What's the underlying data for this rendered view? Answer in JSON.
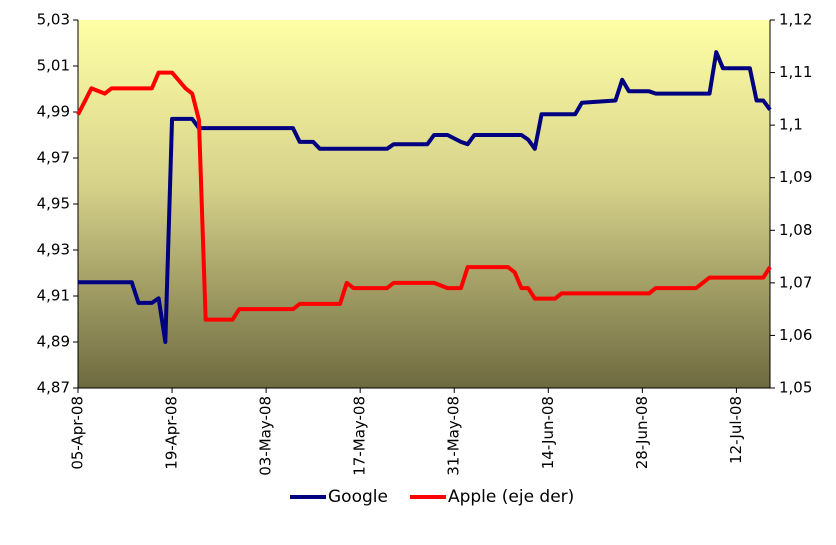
{
  "chart_data": {
    "type": "line",
    "x": [
      "2008-04-05",
      "2008-04-07",
      "2008-04-09",
      "2008-04-10",
      "2008-04-13",
      "2008-04-14",
      "2008-04-16",
      "2008-04-17",
      "2008-04-18",
      "2008-04-19",
      "2008-04-21",
      "2008-04-22",
      "2008-04-23",
      "2008-04-24",
      "2008-04-28",
      "2008-04-29",
      "2008-05-07",
      "2008-05-08",
      "2008-05-10",
      "2008-05-11",
      "2008-05-14",
      "2008-05-15",
      "2008-05-16",
      "2008-05-21",
      "2008-05-22",
      "2008-05-27",
      "2008-05-28",
      "2008-05-30",
      "2008-06-01",
      "2008-06-02",
      "2008-06-03",
      "2008-06-08",
      "2008-06-09",
      "2008-06-10",
      "2008-06-11",
      "2008-06-12",
      "2008-06-13",
      "2008-06-15",
      "2008-06-16",
      "2008-06-18",
      "2008-06-19",
      "2008-06-24",
      "2008-06-25",
      "2008-06-26",
      "2008-06-29",
      "2008-06-30",
      "2008-07-06",
      "2008-07-07",
      "2008-07-08",
      "2008-07-09",
      "2008-07-10",
      "2008-07-14",
      "2008-07-15",
      "2008-07-16",
      "2008-07-17"
    ],
    "series": [
      {
        "name": "Google",
        "color": "#000080",
        "axis": "y",
        "values": [
          4.916,
          4.916,
          4.916,
          4.916,
          4.916,
          4.907,
          4.907,
          4.909,
          4.89,
          4.987,
          4.987,
          4.987,
          4.983,
          4.983,
          4.983,
          4.983,
          4.983,
          4.977,
          4.977,
          4.974,
          4.974,
          4.974,
          4.974,
          4.974,
          4.976,
          4.976,
          4.98,
          4.98,
          4.977,
          4.976,
          4.98,
          4.98,
          4.98,
          4.98,
          4.978,
          4.974,
          4.989,
          4.989,
          4.989,
          4.989,
          4.994,
          4.995,
          5.004,
          4.999,
          4.999,
          4.998,
          4.998,
          4.998,
          4.998,
          5.016,
          5.009,
          5.009,
          4.995,
          4.995,
          4.991
        ]
      },
      {
        "name": "Apple (eje der)",
        "color": "#ff0000",
        "axis": "y2",
        "values": [
          1.102,
          1.107,
          1.106,
          1.107,
          1.107,
          1.107,
          1.107,
          1.11,
          1.11,
          1.11,
          1.107,
          1.106,
          1.101,
          1.063,
          1.063,
          1.065,
          1.065,
          1.066,
          1.066,
          1.066,
          1.066,
          1.07,
          1.069,
          1.069,
          1.07,
          1.07,
          1.07,
          1.069,
          1.069,
          1.073,
          1.073,
          1.073,
          1.072,
          1.069,
          1.069,
          1.067,
          1.067,
          1.067,
          1.068,
          1.068,
          1.068,
          1.068,
          1.068,
          1.068,
          1.068,
          1.069,
          1.069,
          1.07,
          1.071,
          1.071,
          1.071,
          1.071,
          1.071,
          1.071,
          1.073
        ]
      }
    ],
    "xlim": [
      "2008-04-05",
      "2008-07-17"
    ],
    "xticks": [
      {
        "value": "2008-04-05",
        "label": "05-Apr-08"
      },
      {
        "value": "2008-04-19",
        "label": "19-Apr-08"
      },
      {
        "value": "2008-05-03",
        "label": "03-May-08"
      },
      {
        "value": "2008-05-17",
        "label": "17-May-08"
      },
      {
        "value": "2008-05-31",
        "label": "31-May-08"
      },
      {
        "value": "2008-06-14",
        "label": "14-Jun-08"
      },
      {
        "value": "2008-06-28",
        "label": "28-Jun-08"
      },
      {
        "value": "2008-07-12",
        "label": "12-Jul-08"
      }
    ],
    "ylim": [
      4.87,
      5.03
    ],
    "yticks": [
      {
        "value": 4.87,
        "label": "4,87"
      },
      {
        "value": 4.89,
        "label": "4,89"
      },
      {
        "value": 4.91,
        "label": "4,91"
      },
      {
        "value": 4.93,
        "label": "4,93"
      },
      {
        "value": 4.95,
        "label": "4,95"
      },
      {
        "value": 4.97,
        "label": "4,97"
      },
      {
        "value": 4.99,
        "label": "4,99"
      },
      {
        "value": 5.01,
        "label": "5,01"
      },
      {
        "value": 5.03,
        "label": "5,03"
      }
    ],
    "y2lim": [
      1.05,
      1.12
    ],
    "y2ticks": [
      {
        "value": 1.05,
        "label": "1,05"
      },
      {
        "value": 1.06,
        "label": "1,06"
      },
      {
        "value": 1.07,
        "label": "1,07"
      },
      {
        "value": 1.08,
        "label": "1,08"
      },
      {
        "value": 1.09,
        "label": "1,09"
      },
      {
        "value": 1.1,
        "label": "1,1"
      },
      {
        "value": 1.11,
        "label": "1,11"
      },
      {
        "value": 1.12,
        "label": "1,12"
      }
    ],
    "legend": "bottom"
  }
}
